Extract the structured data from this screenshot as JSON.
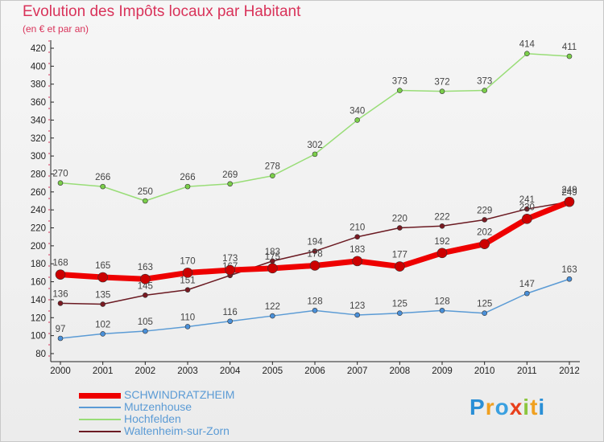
{
  "header": {
    "title": "Evolution des Impôts locaux par Habitant",
    "subtitle": "(en € et par an)"
  },
  "logo": {
    "text": "Proxiti"
  },
  "colors": {
    "title": "#d9335a",
    "schwindratzheim": "#ee0000",
    "mutzenhouse": "#5b9bd5",
    "hochfelden": "#99dd77",
    "waltenheim": "#6b1a22"
  },
  "chart_data": {
    "type": "line",
    "title": "Evolution des Impôts locaux par Habitant",
    "subtitle": "(en € et par an)",
    "x": [
      "2000",
      "2001",
      "2002",
      "2003",
      "2004",
      "2005",
      "2006",
      "2007",
      "2008",
      "2009",
      "2010",
      "2011",
      "2012"
    ],
    "ylim": [
      80,
      420
    ],
    "yticks": [
      80,
      100,
      120,
      140,
      160,
      180,
      200,
      220,
      240,
      260,
      280,
      300,
      320,
      340,
      360,
      380,
      400,
      420
    ],
    "grid": false,
    "legend_position": "bottom-left",
    "series": [
      {
        "name": "Hochfelden",
        "color": "#99dd77",
        "values": [
          270,
          266,
          250,
          266,
          269,
          278,
          302,
          340,
          373,
          372,
          373,
          414,
          411
        ],
        "labels": [
          "270",
          "266",
          "250",
          "266",
          "269",
          "278",
          "302",
          "340",
          "373",
          "372",
          "373",
          "414",
          "411"
        ]
      },
      {
        "name": "Waltenheim-sur-Zorn",
        "color": "#6b1a22",
        "values": [
          136,
          135,
          145,
          151,
          167,
          183,
          194,
          210,
          220,
          222,
          229,
          241,
          249
        ],
        "labels": [
          "136",
          "135",
          "145",
          "151",
          "167",
          "183",
          "194",
          "210",
          "220",
          "222",
          "229",
          "241",
          "249"
        ]
      },
      {
        "name": "Mutzenhouse",
        "color": "#5b9bd5",
        "values": [
          97,
          102,
          105,
          110,
          116,
          122,
          128,
          123,
          125,
          128,
          125,
          147,
          163
        ],
        "labels": [
          "97",
          "102",
          "105",
          "110",
          "116",
          "122",
          "128",
          "123",
          "125",
          "128",
          "125",
          "147",
          "163"
        ]
      },
      {
        "name": "SCHWINDRATZHEIM",
        "color": "#ee0000",
        "values": [
          168,
          165,
          163,
          170,
          173,
          175,
          178,
          183,
          177,
          192,
          202,
          230,
          249
        ],
        "labels": [
          "168",
          "165",
          "163",
          "170",
          "173",
          "175",
          "178",
          "183",
          "177",
          "192",
          "202",
          "230",
          "249"
        ]
      }
    ],
    "legend": [
      {
        "name": "SCHWINDRATZHEIM",
        "color": "#ee0000"
      },
      {
        "name": "Mutzenhouse",
        "color": "#5b9bd5"
      },
      {
        "name": "Hochfelden",
        "color": "#99dd77"
      },
      {
        "name": "Waltenheim-sur-Zorn",
        "color": "#6b1a22"
      }
    ]
  }
}
